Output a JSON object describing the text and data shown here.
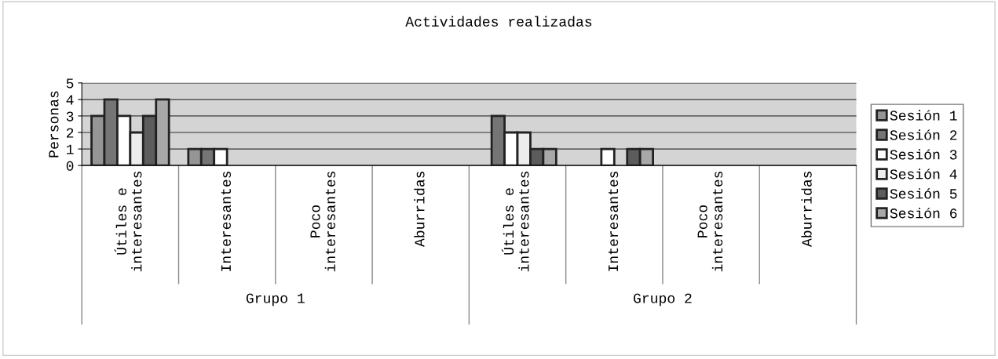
{
  "chart_data": {
    "type": "bar",
    "title": "Actividades realizadas",
    "ylabel": "Personas",
    "categories": [
      "Útiles e\ninteresantes",
      "Interesantes",
      "Poco\ninteresantes",
      "Aburridas",
      "Útiles e\ninteresantes",
      "Interesantes",
      "Poco\ninteresantes",
      "Aburridas"
    ],
    "series": [
      {
        "name": "Sesión 1",
        "color": "#959595",
        "values": [
          3,
          1,
          0,
          0,
          0,
          0,
          0,
          0
        ]
      },
      {
        "name": "Sesión 2",
        "color": "#757575",
        "values": [
          4,
          1,
          0,
          0,
          3,
          0,
          0,
          0
        ]
      },
      {
        "name": "Sesión 3",
        "color": "#ffffff",
        "values": [
          3,
          1,
          0,
          0,
          2,
          1,
          0,
          0
        ]
      },
      {
        "name": "Sesión 4",
        "color": "#ededed",
        "values": [
          2,
          0,
          0,
          0,
          2,
          0,
          0,
          0
        ]
      },
      {
        "name": "Sesión 5",
        "color": "#5c5c5c",
        "values": [
          3,
          0,
          0,
          0,
          1,
          1,
          0,
          0
        ]
      },
      {
        "name": "Sesión 6",
        "color": "#a8a8a8",
        "values": [
          4,
          0,
          0,
          0,
          1,
          1,
          0,
          0
        ]
      }
    ],
    "annotations": [
      "Grupo 1",
      "Grupo 2"
    ],
    "ylim": [
      0,
      5
    ],
    "yticks": [
      0,
      1,
      2,
      3,
      4,
      5
    ],
    "grid": "y",
    "legend": "right"
  }
}
